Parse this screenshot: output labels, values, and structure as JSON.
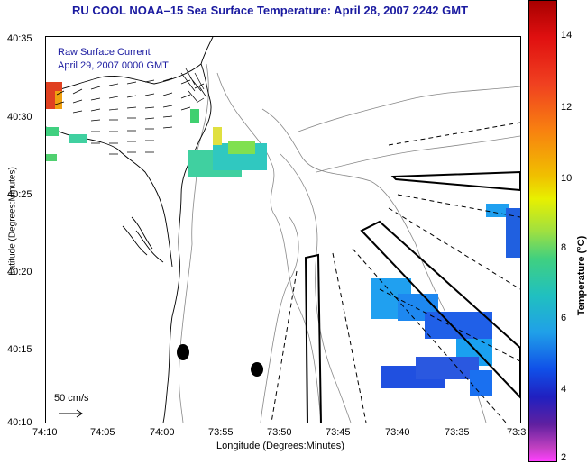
{
  "title": "RU COOL  NOAA–15  Sea Surface Temperature:  April 28, 2007 2242 GMT",
  "legend": {
    "line1": "Raw Surface Current",
    "line2": "April 29, 2007 0000 GMT"
  },
  "scale_label": "50 cm/s",
  "x_axis": {
    "title": "Longitude (Degrees:Minutes)",
    "ticks": [
      "74:10",
      "74:05",
      "74:00",
      "73:55",
      "73:50",
      "73:45",
      "73:40",
      "73:35",
      "73:3"
    ]
  },
  "y_axis": {
    "title": "Latitude (Degrees:Minutes)",
    "ticks": [
      "40:35",
      "40:30",
      "40:25",
      "40:20",
      "40:15",
      "40:10"
    ]
  },
  "colorbar": {
    "title": "Temperature (°C)",
    "ticks": [
      "14",
      "12",
      "10",
      "8",
      "6",
      "4",
      "2"
    ]
  },
  "colors": {
    "title_text": "#1a1aa0",
    "coastline": "#000000",
    "bathymetry": "#888888"
  }
}
